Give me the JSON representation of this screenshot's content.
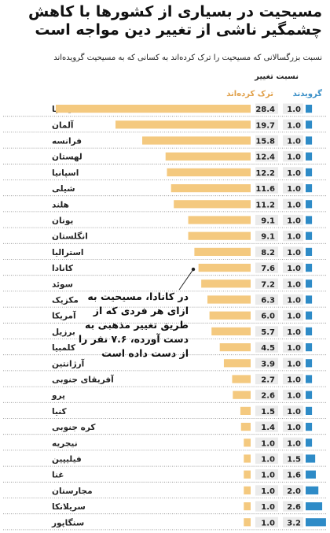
{
  "header": {
    "title": "مسیحیت در بسیاری از کشورها با کاهش چشمگیر ناشی از تغییر دین مواجه است",
    "subtitle": "نسبت بزرگسالانی که مسیحیت را ترک کرده‌اند به کسانی که به مسیحیت گرویده‌اند",
    "group_header": "نسبت تغییر",
    "col_converts": "گرویدند",
    "col_left": "ترک کرده‌اند"
  },
  "annotation": {
    "text": "در کانادا، مسیحیت به ازای هر فردی که از طریق تغییر مذهبی به دست آورده، ۷.۶ نفر را از دست داده است"
  },
  "colors": {
    "left_bar": "#f4c97f",
    "converts_bar": "#2e8bc7",
    "label_box": "#ebebeb",
    "row_line": "#8a8a8a"
  },
  "chart_data": {
    "type": "bar",
    "categories": [
      "ایتالیا",
      "آلمان",
      "فرانسه",
      "لهستان",
      "اسپانیا",
      "شیلی",
      "هلند",
      "یونان",
      "انگلستان",
      "استرالیا",
      "کانادا",
      "سوئد",
      "مکزیک",
      "آمریکا",
      "برزیل",
      "کلمبیا",
      "آرژانتین",
      "آفریقای جنوبی",
      "پرو",
      "کنیا",
      "کره جنوبی",
      "نیجریه",
      "فیلیپین",
      "غنا",
      "مجارستان",
      "سریلانکا",
      "سنگاپور"
    ],
    "series": [
      {
        "name": "ترک کرده‌اند",
        "values": [
          28.4,
          19.7,
          15.8,
          12.4,
          12.2,
          11.6,
          11.2,
          9.1,
          9.1,
          8.2,
          7.6,
          7.2,
          6.3,
          6.0,
          5.7,
          4.5,
          3.9,
          2.7,
          2.6,
          1.5,
          1.4,
          1.0,
          1.0,
          1.0,
          1.0,
          1.0,
          1.0
        ],
        "labels": [
          "28.4",
          "19.7",
          "15.8",
          "12.4",
          "12.2",
          "11.6",
          "11.2",
          "9.1",
          "9.1",
          "8.2",
          "7.6",
          "7.2",
          "6.3",
          "6.0",
          "5.7",
          "4.5",
          "3.9",
          "2.7",
          "2.6",
          "1.5",
          "1.4",
          "1.0",
          "1.0",
          "1.0",
          "1.0",
          "1.0",
          "1.0"
        ]
      },
      {
        "name": "گرویدند",
        "values": [
          1.0,
          1.0,
          1.0,
          1.0,
          1.0,
          1.0,
          1.0,
          1.0,
          1.0,
          1.0,
          1.0,
          1.0,
          1.0,
          1.0,
          1.0,
          1.0,
          1.0,
          1.0,
          1.0,
          1.0,
          1.0,
          1.0,
          1.5,
          1.6,
          2.0,
          2.6,
          3.2
        ],
        "labels": [
          "1.0",
          "1.0",
          "1.0",
          "1.0",
          "1.0",
          "1.0",
          "1.0",
          "1.0",
          "1.0",
          "1.0",
          "1.0",
          "1.0",
          "1.0",
          "1.0",
          "1.0",
          "1.0",
          "1.0",
          "1.0",
          "1.0",
          "1.0",
          "1.0",
          "1.0",
          "1.5",
          "1.6",
          "2.0",
          "2.6",
          "3.2"
        ]
      }
    ]
  }
}
